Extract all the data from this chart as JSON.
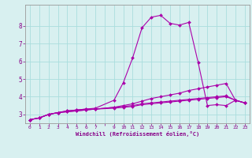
{
  "background_color": "#d8f0f0",
  "grid_color": "#aadddd",
  "line_color": "#aa00aa",
  "xlabel": "Windchill (Refroidissement éolien,°C)",
  "xlabel_color": "#880088",
  "tick_color": "#880088",
  "xlim": [
    -0.5,
    23.5
  ],
  "ylim": [
    2.5,
    9.2
  ],
  "yticks": [
    3,
    4,
    5,
    6,
    7,
    8
  ],
  "lines": [
    {
      "x": [
        0,
        1,
        2,
        3,
        4,
        5,
        6,
        7,
        9,
        10,
        11,
        12,
        13,
        14,
        15,
        16,
        17,
        18,
        19,
        20,
        21,
        22,
        23
      ],
      "y": [
        2.7,
        2.8,
        3.0,
        3.1,
        3.2,
        3.25,
        3.3,
        3.35,
        3.8,
        4.8,
        6.2,
        7.9,
        8.5,
        8.6,
        8.15,
        8.05,
        8.2,
        5.95,
        3.5,
        3.55,
        3.5,
        3.8,
        3.65
      ]
    },
    {
      "x": [
        0,
        1,
        2,
        3,
        4,
        5,
        6,
        7,
        9,
        10,
        11,
        12,
        13,
        14,
        15,
        16,
        17,
        18,
        19,
        20,
        21,
        22,
        23
      ],
      "y": [
        2.7,
        2.8,
        3.0,
        3.1,
        3.15,
        3.2,
        3.25,
        3.3,
        3.4,
        3.5,
        3.6,
        3.75,
        3.9,
        4.0,
        4.1,
        4.2,
        4.35,
        4.45,
        4.55,
        4.65,
        4.75,
        3.8,
        3.65
      ]
    },
    {
      "x": [
        0,
        1,
        2,
        3,
        4,
        5,
        6,
        7,
        9,
        10,
        11,
        12,
        13,
        14,
        15,
        16,
        17,
        18,
        19,
        20,
        21,
        22,
        23
      ],
      "y": [
        2.7,
        2.8,
        3.0,
        3.1,
        3.2,
        3.25,
        3.3,
        3.3,
        3.4,
        3.45,
        3.5,
        3.6,
        3.65,
        3.7,
        3.75,
        3.8,
        3.85,
        3.9,
        3.95,
        4.0,
        4.05,
        3.8,
        3.65
      ]
    },
    {
      "x": [
        0,
        1,
        2,
        3,
        4,
        5,
        6,
        7,
        9,
        10,
        11,
        12,
        13,
        14,
        15,
        16,
        17,
        18,
        19,
        20,
        21,
        22,
        23
      ],
      "y": [
        2.7,
        2.8,
        3.0,
        3.1,
        3.15,
        3.2,
        3.25,
        3.3,
        3.35,
        3.4,
        3.45,
        3.55,
        3.6,
        3.65,
        3.7,
        3.75,
        3.8,
        3.85,
        3.9,
        3.95,
        4.0,
        3.8,
        3.65
      ]
    }
  ]
}
